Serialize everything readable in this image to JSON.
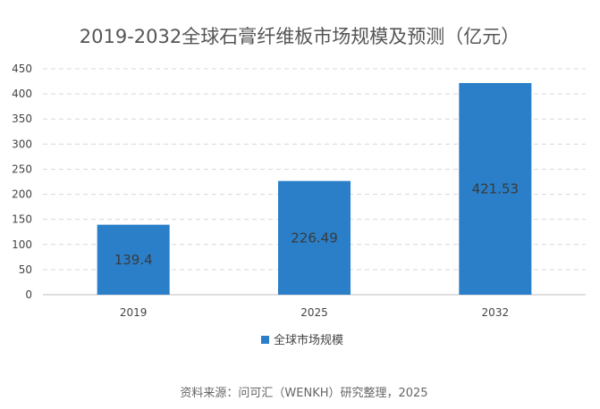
{
  "chart_data": {
    "type": "bar",
    "title": "2019-2032全球石膏纤维板市场规模及预测（亿元）",
    "categories": [
      "2019",
      "2025",
      "2032"
    ],
    "series": [
      {
        "name": "全球市场规模",
        "values": [
          139.4,
          226.49,
          421.53
        ],
        "data_labels": [
          "139.4",
          "226.49",
          "421.53"
        ]
      }
    ],
    "ylim": [
      0,
      450
    ],
    "yticks": [
      0,
      50,
      100,
      150,
      200,
      250,
      300,
      350,
      400,
      450
    ],
    "grid": true,
    "legend_position": "bottom",
    "colors": {
      "bar": "#2a7fc8"
    }
  },
  "source": "资料来源：问可汇（WENKH）研究整理，2025"
}
